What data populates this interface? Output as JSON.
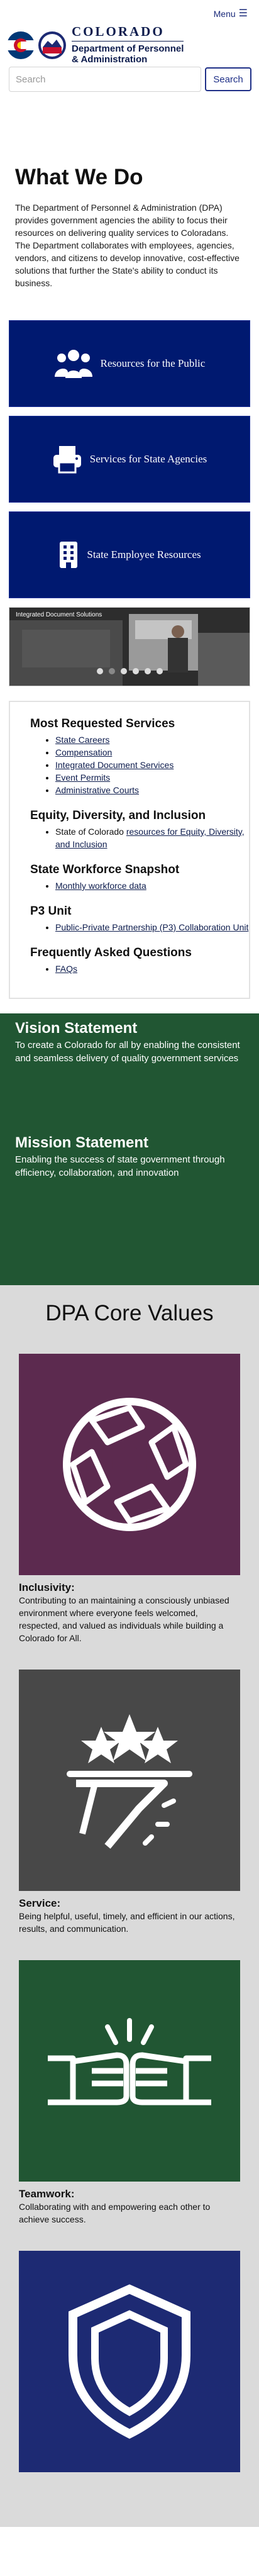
{
  "header": {
    "menu_label": "Menu",
    "state_name": "COLORADO",
    "dept_line1": "Department of Personnel",
    "dept_line2": "& Administration",
    "seal_text": "DPA"
  },
  "search": {
    "placeholder": "Search",
    "button_label": "Search"
  },
  "what_we_do": {
    "title": "What We Do",
    "body": "The Department of Personnel & Administration (DPA) provides government agencies the ability to focus their resources on delivering quality services to Coloradans. The Department collaborates with employees, agencies, vendors, and citizens to develop innovative, cost-effective solutions that further the State's ability to conduct its business."
  },
  "tiles": [
    {
      "label": "Resources for the Public",
      "icon": "people-icon"
    },
    {
      "label": "Services for State Agencies",
      "icon": "printer-icon"
    },
    {
      "label": "State Employee Resources",
      "icon": "building-icon"
    }
  ],
  "carousel": {
    "caption": "Integrated Document Solutions",
    "slide_count": 6,
    "active_index": 1
  },
  "services": {
    "sections": [
      {
        "title": "Most Requested Services",
        "items": [
          {
            "text": "State Careers",
            "link": true
          },
          {
            "text": "Compensation",
            "link": true
          },
          {
            "text": "Integrated Document Services",
            "link": true
          },
          {
            "text": "Event Permits",
            "link": true
          },
          {
            "text": "Administrative Courts",
            "link": true
          }
        ]
      },
      {
        "title": "Equity, Diversity, and Inclusion",
        "items": [
          {
            "prefix": "State of Colorado ",
            "text": "resources for Equity, Diversity, and Inclusion",
            "link": true
          }
        ]
      },
      {
        "title": "State Workforce Snapshot",
        "items": [
          {
            "text": "Monthly workforce data",
            "link": true
          }
        ]
      },
      {
        "title": "P3 Unit",
        "items": [
          {
            "text": "Public-Private Partnership (P3) Collaboration Unit",
            "link": true
          }
        ]
      },
      {
        "title": "Frequently Asked Questions",
        "items": [
          {
            "text": "FAQs",
            "link": true
          }
        ]
      }
    ]
  },
  "vision": {
    "title": "Vision Statement",
    "body": "To create a Colorado for all by enabling the consistent and seamless delivery of quality government services"
  },
  "mission": {
    "title": "Mission Statement",
    "body": "Enabling the success of state government through efficiency, collaboration, and innovation"
  },
  "core_values": {
    "title": "DPA Core Values",
    "items": [
      {
        "title": "Inclusivity:",
        "desc": "Contributing to an maintaining a consciously unbiased environment where everyone feels welcomed, respected, and valued as individuals while building a Colorado for All.",
        "color": "#5c2a4f",
        "icon": "joined-hands-icon"
      },
      {
        "title": "Service:",
        "desc": "Being helpful, useful, timely, and efficient in our actions, results, and communication.",
        "color": "#484848",
        "icon": "serving-tray-stars-icon"
      },
      {
        "title": "Teamwork:",
        "desc": "Collaborating with and empowering each other to achieve success.",
        "color": "#215633",
        "icon": "fist-bump-icon"
      },
      {
        "title": "",
        "desc": "",
        "color": "#1d2a73",
        "icon": "shield-icon"
      }
    ]
  }
}
